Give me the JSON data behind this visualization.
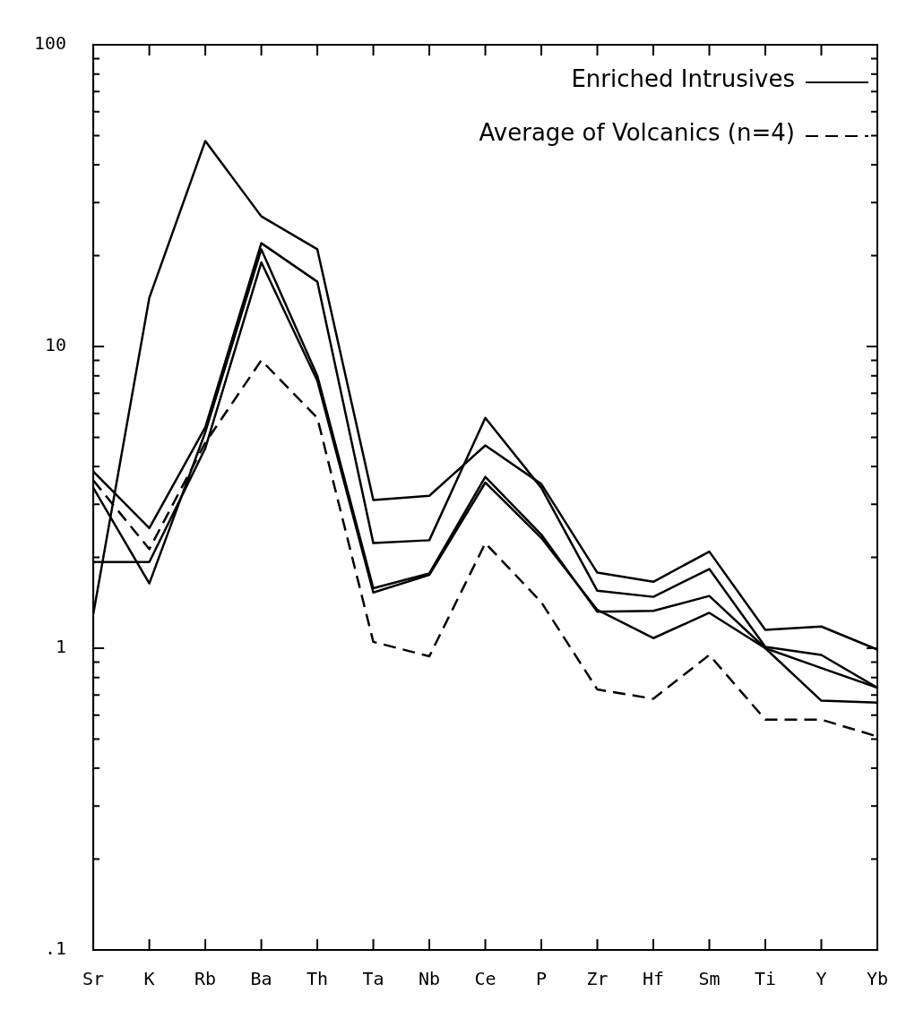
{
  "chart_data": {
    "type": "line",
    "categories": [
      "Sr",
      "K",
      "Rb",
      "Ba",
      "Th",
      "Ta",
      "Nb",
      "Ce",
      "P",
      "Zr",
      "Hf",
      "Sm",
      "Ti",
      "Y",
      "Yb"
    ],
    "series": [
      {
        "name": "Enriched Intrusives",
        "color": "#000000",
        "line_style": "solid",
        "values": [
          1.3,
          14.5,
          48,
          27,
          21,
          3.1,
          3.2,
          4.7,
          3.5,
          1.78,
          1.66,
          2.09,
          1.15,
          1.18,
          0.99
        ]
      },
      {
        "color": "#000000",
        "line_style": "solid",
        "values": [
          3.85,
          2.5,
          5.4,
          22,
          16.4,
          2.23,
          2.28,
          5.8,
          3.4,
          1.55,
          1.48,
          1.83,
          1.01,
          0.95,
          0.74
        ]
      },
      {
        "color": "#000000",
        "line_style": "solid",
        "values": [
          3.4,
          1.64,
          5.2,
          21,
          8,
          1.58,
          1.77,
          3.7,
          2.38,
          1.32,
          1.33,
          1.49,
          1.0,
          0.86,
          0.74
        ]
      },
      {
        "color": "#000000",
        "line_style": "solid",
        "values": [
          1.93,
          1.93,
          4.6,
          19,
          7.7,
          1.53,
          1.75,
          3.54,
          2.32,
          1.34,
          1.08,
          1.31,
          1.0,
          0.67,
          0.66
        ]
      },
      {
        "name": "Average of Volcanics (n=4)",
        "color": "#000000",
        "line_style": "dashed",
        "values": [
          3.6,
          2.13,
          4.8,
          9.0,
          5.8,
          1.05,
          0.94,
          2.23,
          1.42,
          0.73,
          0.68,
          0.95,
          0.58,
          0.58,
          0.51
        ]
      }
    ],
    "log": "y",
    "ylim": [
      0.1,
      100
    ],
    "yticks": [
      {
        "value": 0.1,
        "label": ".1"
      },
      {
        "value": 0.2,
        "label": null
      },
      {
        "value": 0.3,
        "label": null
      },
      {
        "value": 0.4,
        "label": null
      },
      {
        "value": 0.5,
        "label": null
      },
      {
        "value": 0.6,
        "label": null
      },
      {
        "value": 0.7,
        "label": null
      },
      {
        "value": 0.8,
        "label": null
      },
      {
        "value": 0.9,
        "label": null
      },
      1,
      {
        "value": 2,
        "label": null
      },
      {
        "value": 3,
        "label": null
      },
      {
        "value": 4,
        "label": null
      },
      {
        "value": 5,
        "label": null
      },
      {
        "value": 6,
        "label": null
      },
      {
        "value": 7,
        "label": null
      },
      {
        "value": 8,
        "label": null
      },
      {
        "value": 9,
        "label": null
      },
      10,
      {
        "value": 20,
        "label": null
      },
      {
        "value": 30,
        "label": null
      },
      {
        "value": 40,
        "label": null
      },
      {
        "value": 50,
        "label": null
      },
      {
        "value": 60,
        "label": null
      },
      {
        "value": 70,
        "label": null
      },
      {
        "value": 80,
        "label": null
      },
      {
        "value": 90,
        "label": null
      },
      100
    ],
    "grid": false,
    "legend": "top right",
    "marker": "none"
  }
}
